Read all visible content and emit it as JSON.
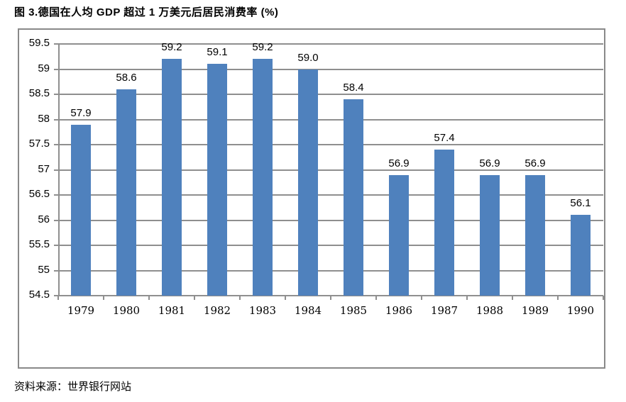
{
  "title": "图 3.德国在人均 GDP 超过 1 万美元后居民消费率 (%)",
  "source": "资料来源：世界银行网站",
  "colors": {
    "bar": "#4F81BD",
    "grid": "#8f8f8f",
    "frame_border": "#898989",
    "text": "#000000",
    "background": "#ffffff"
  },
  "chart_data": {
    "type": "bar",
    "title": "图 3.德国在人均 GDP 超过 1 万美元后居民消费率 (%)",
    "xlabel": "",
    "ylabel": "",
    "categories": [
      "1979",
      "1980",
      "1981",
      "1982",
      "1983",
      "1984",
      "1985",
      "1986",
      "1987",
      "1988",
      "1989",
      "1990"
    ],
    "values": [
      57.9,
      58.6,
      59.2,
      59.1,
      59.2,
      59.0,
      58.4,
      56.9,
      57.4,
      56.9,
      56.9,
      56.1
    ],
    "value_labels": [
      "57.9",
      "58.6",
      "59.2",
      "59.1",
      "59.2",
      "59.0",
      "58.4",
      "56.9",
      "57.4",
      "56.9",
      "56.9",
      "56.1"
    ],
    "ylim": [
      54.5,
      59.5
    ],
    "ytick_values": [
      59.5,
      59,
      58.5,
      58,
      57.5,
      57,
      56.5,
      56,
      55.5,
      55,
      54.5
    ],
    "ytick_labels": [
      "59.5",
      "59",
      "58.5",
      "58",
      "57.5",
      "57",
      "56.5",
      "56",
      "55.5",
      "55",
      "54.5"
    ],
    "grid": true,
    "legend_position": "none"
  }
}
